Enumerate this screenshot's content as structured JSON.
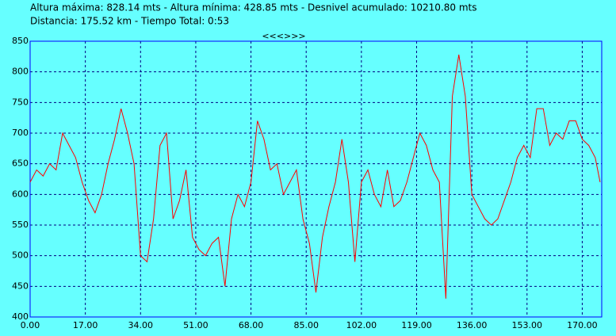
{
  "chart_data": {
    "type": "line",
    "title": "Altura máxima: 828.14 mts - Altura mínima: 428.85 mts - Desnivel acumulado: 10210.80 mts",
    "subtitle": "Distancia: 175.52 km - Tiempo Total: 0:53",
    "navigation": "<<<>>>",
    "background": "#66ffff",
    "grid": true,
    "grid_color": "#000080",
    "frame_color": "#0000ff",
    "x": [
      0,
      2,
      4,
      6,
      8,
      10,
      12,
      14,
      16,
      18,
      20,
      22,
      24,
      26,
      28,
      30,
      32,
      34,
      36,
      38,
      40,
      42,
      44,
      46,
      48,
      50,
      52,
      54,
      56,
      58,
      60,
      62,
      64,
      66,
      68,
      70,
      72,
      74,
      76,
      78,
      80,
      82,
      84,
      86,
      88,
      90,
      92,
      94,
      96,
      98,
      100,
      102,
      104,
      106,
      108,
      110,
      112,
      114,
      116,
      118,
      120,
      122,
      124,
      126,
      128,
      130,
      132,
      134,
      136,
      138,
      140,
      142,
      144,
      146,
      148,
      150,
      152,
      154,
      156,
      158,
      160,
      162,
      164,
      166,
      168,
      170,
      172,
      174,
      175.5
    ],
    "series": [
      {
        "color": "#ff0000",
        "values": [
          620,
          640,
          630,
          650,
          640,
          700,
          680,
          660,
          620,
          590,
          570,
          600,
          650,
          690,
          740,
          700,
          650,
          500,
          490,
          560,
          680,
          700,
          560,
          590,
          640,
          530,
          510,
          500,
          520,
          530,
          450,
          560,
          600,
          580,
          620,
          720,
          690,
          640,
          650,
          600,
          620,
          640,
          560,
          520,
          440,
          530,
          580,
          620,
          690,
          620,
          490,
          620,
          640,
          600,
          580,
          640,
          580,
          590,
          620,
          660,
          700,
          680,
          640,
          620,
          430,
          760,
          828,
          760,
          600,
          580,
          560,
          550,
          560,
          590,
          620,
          660,
          680,
          660,
          740,
          740,
          680,
          700,
          690,
          720,
          720,
          690,
          680,
          660,
          620
        ]
      }
    ],
    "xlim": [
      0,
      176
    ],
    "ylim": [
      400,
      850
    ],
    "xticks": [
      {
        "value": 0,
        "label": "0.00"
      },
      {
        "value": 17,
        "label": "17.00"
      },
      {
        "value": 34,
        "label": "34.00"
      },
      {
        "value": 51,
        "label": "51.00"
      },
      {
        "value": 68,
        "label": "68.00"
      },
      {
        "value": 85,
        "label": "85.00"
      },
      {
        "value": 102,
        "label": "102.00"
      },
      {
        "value": 119,
        "label": "119.00"
      },
      {
        "value": 136,
        "label": "136.00"
      },
      {
        "value": 153,
        "label": "153.00"
      },
      {
        "value": 170,
        "label": "170.00"
      }
    ],
    "yticks": [
      400,
      450,
      500,
      550,
      600,
      650,
      700,
      750,
      800,
      850
    ]
  }
}
